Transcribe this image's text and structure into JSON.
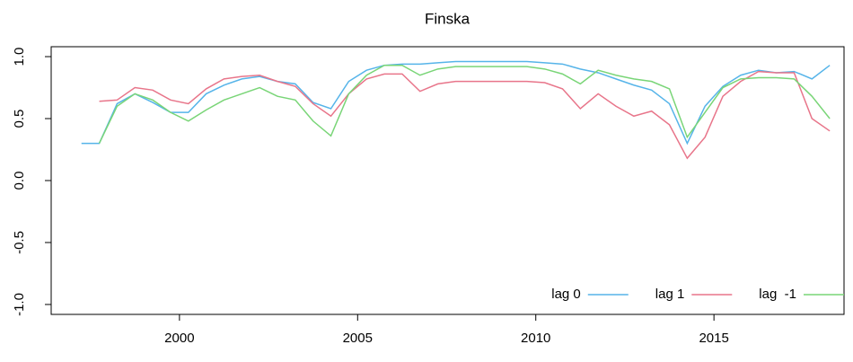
{
  "chart_data": {
    "type": "line",
    "title": "Finska",
    "x": [
      1997.25,
      1997.75,
      1998.25,
      1998.75,
      1999.25,
      1999.75,
      2000.25,
      2000.75,
      2001.25,
      2001.75,
      2002.25,
      2002.75,
      2003.25,
      2003.75,
      2004.25,
      2004.75,
      2005.25,
      2005.75,
      2006.25,
      2006.75,
      2007.25,
      2007.75,
      2008.25,
      2008.75,
      2009.25,
      2009.75,
      2010.25,
      2010.75,
      2011.25,
      2011.75,
      2012.25,
      2012.75,
      2013.25,
      2013.75,
      2014.25,
      2014.75,
      2015.25,
      2015.75,
      2016.25,
      2016.75,
      2017.25,
      2017.75,
      2018.25
    ],
    "series": [
      {
        "name": "lag 0",
        "color": "#56B4E9",
        "values": [
          0.3,
          0.3,
          0.62,
          0.7,
          0.63,
          0.55,
          0.55,
          0.7,
          0.77,
          0.82,
          0.84,
          0.8,
          0.78,
          0.63,
          0.58,
          0.8,
          0.89,
          0.93,
          0.94,
          0.94,
          0.95,
          0.96,
          0.96,
          0.96,
          0.96,
          0.96,
          0.95,
          0.94,
          0.9,
          0.87,
          0.82,
          0.77,
          0.73,
          0.62,
          0.3,
          0.6,
          0.76,
          0.85,
          0.89,
          0.87,
          0.88,
          0.82,
          0.93
        ]
      },
      {
        "name": "lag 1",
        "color": "#E8758A",
        "values": [
          null,
          0.64,
          0.65,
          0.75,
          0.73,
          0.65,
          0.62,
          0.74,
          0.82,
          0.84,
          0.85,
          0.8,
          0.76,
          0.62,
          0.52,
          0.7,
          0.82,
          0.86,
          0.86,
          0.72,
          0.78,
          0.8,
          0.8,
          0.8,
          0.8,
          0.8,
          0.79,
          0.74,
          0.58,
          0.7,
          0.6,
          0.52,
          0.56,
          0.45,
          0.18,
          0.35,
          0.68,
          0.8,
          0.88,
          0.87,
          0.87,
          0.5,
          0.4
        ]
      },
      {
        "name": "lag  -1",
        "color": "#79D577",
        "values": [
          null,
          0.3,
          0.6,
          0.7,
          0.65,
          0.55,
          0.48,
          0.57,
          0.65,
          0.7,
          0.75,
          0.68,
          0.65,
          0.48,
          0.36,
          0.7,
          0.85,
          0.93,
          0.93,
          0.85,
          0.9,
          0.92,
          0.92,
          0.92,
          0.92,
          0.92,
          0.9,
          0.86,
          0.78,
          0.89,
          0.85,
          0.82,
          0.8,
          0.74,
          0.35,
          0.55,
          0.75,
          0.82,
          0.83,
          0.83,
          0.82,
          0.68,
          0.5
        ]
      }
    ],
    "xlim": [
      1996.4,
      2018.65
    ],
    "xticks": [
      2000,
      2005,
      2010,
      2015
    ],
    "ylim": [
      -1.08,
      1.08
    ],
    "yticks": [
      {
        "value": -1,
        "label": "-1.0"
      },
      -0.5,
      {
        "value": 0,
        "label": "0.0"
      },
      0.5,
      {
        "value": 1,
        "label": "1.0"
      }
    ],
    "legend": "bottomright"
  }
}
